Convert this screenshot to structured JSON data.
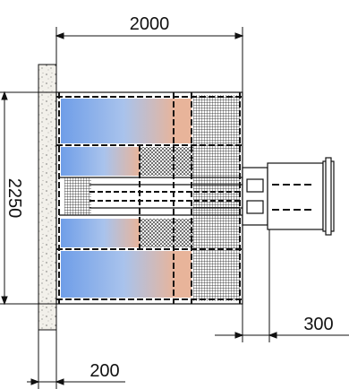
{
  "dimensions": {
    "width_top": "2000",
    "height_left": "2250",
    "projection_right": "300",
    "wall_bottom": "200"
  },
  "colors": {
    "blue": "#6f9ee8",
    "blue_light": "#dde8f7",
    "peach": "#e8b49a",
    "line": "#111111",
    "wall_fill": "#f2f0ea"
  }
}
